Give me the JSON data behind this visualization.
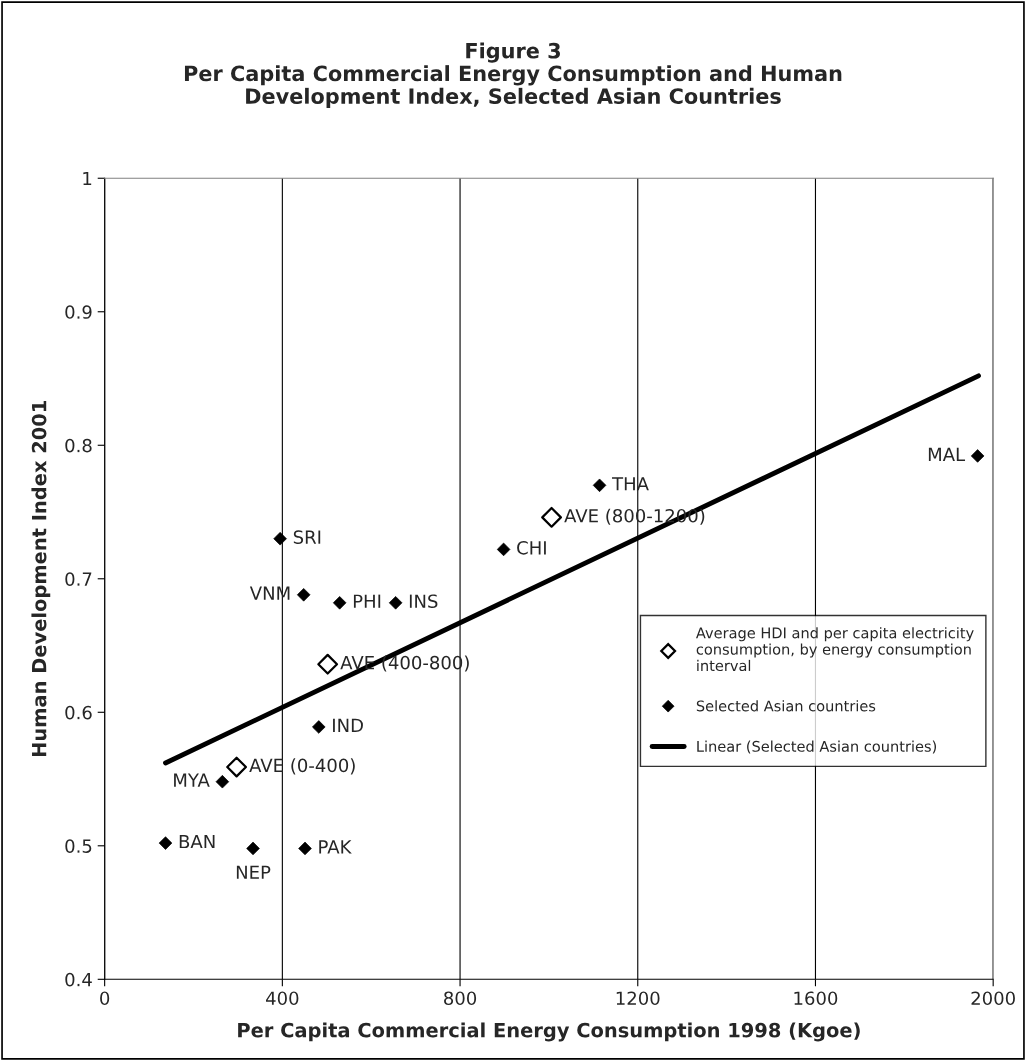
{
  "chart_data": {
    "type": "scatter",
    "title": "Figure 3\nPer Capita Commercial Energy Consumption and Human\nDevelopment Index, Selected Asian Countries",
    "xlabel": "Per Capita Commercial Energy Consumption 1998 (Kgoe)",
    "ylabel": "Human Development Index 2001",
    "xlim": [
      0,
      2000
    ],
    "xticks": [
      0,
      400,
      800,
      1200,
      1600,
      2000
    ],
    "ylim": [
      0.4,
      1
    ],
    "yticks": [
      0.4,
      0.5,
      0.6,
      0.7,
      0.8,
      0.9,
      1
    ],
    "grid": "x",
    "legend": "center right",
    "series": [
      {
        "name": "Average HDI and per capita electricity consumption, by energy consumption interval",
        "marker": "diamond",
        "color": "#000000",
        "x": [
          297,
          502,
          1006
        ],
        "values": [
          0.559,
          0.636,
          0.746
        ]
      },
      {
        "name": "Selected Asian countries",
        "marker": "diamond",
        "color": "#000000",
        "x": [
          137,
          265,
          334,
          451,
          395,
          448,
          529,
          655,
          482,
          898,
          1114,
          1965
        ],
        "values": [
          0.502,
          0.548,
          0.498,
          0.498,
          0.73,
          0.688,
          0.682,
          0.682,
          0.589,
          0.722,
          0.77,
          0.792
        ]
      },
      {
        "name": "Linear (Selected Asian countries)",
        "type": "line",
        "color": "#000000",
        "x": [
          137,
          1967
        ],
        "values": [
          0.562,
          0.852
        ]
      }
    ],
    "annotations": [
      {
        "text": "AVE (0-400)",
        "x": 297,
        "y": 0.559
      },
      {
        "text": "AVE (400-800)",
        "x": 502,
        "y": 0.636
      },
      {
        "text": "AVE (800-1200)",
        "x": 1006,
        "y": 0.746
      },
      {
        "text": "BAN",
        "x": 137,
        "y": 0.502
      },
      {
        "text": "MYA",
        "x": 265,
        "y": 0.548
      },
      {
        "text": "NEP",
        "x": 334,
        "y": 0.498
      },
      {
        "text": "PAK",
        "x": 451,
        "y": 0.498
      },
      {
        "text": "SRI",
        "x": 395,
        "y": 0.73
      },
      {
        "text": "VNM",
        "x": 448,
        "y": 0.688
      },
      {
        "text": "PHI",
        "x": 529,
        "y": 0.682
      },
      {
        "text": "INS",
        "x": 655,
        "y": 0.682
      },
      {
        "text": "IND",
        "x": 482,
        "y": 0.589
      },
      {
        "text": "CHI",
        "x": 898,
        "y": 0.722
      },
      {
        "text": "THA",
        "x": 1114,
        "y": 0.77
      },
      {
        "text": "MAL",
        "x": 1965,
        "y": 0.792
      }
    ]
  }
}
